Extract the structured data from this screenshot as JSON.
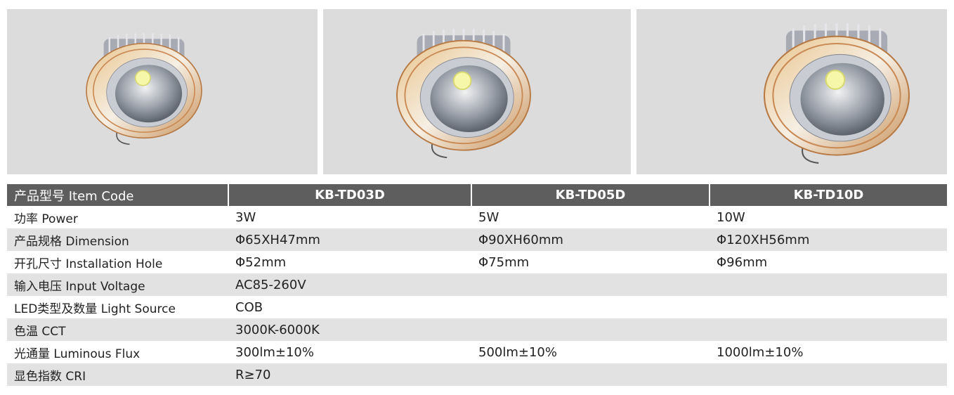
{
  "table": {
    "header": [
      "产品型号 Item Code",
      "KB-TD03D",
      "KB-TD05D",
      "KB-TD10D"
    ],
    "rows": [
      [
        "功率 Power",
        "3W",
        "5W",
        "10W"
      ],
      [
        "产品规格 Dimension",
        "Φ65XH47mm",
        "Φ90XH60mm",
        "Φ120XH56mm"
      ],
      [
        "开孔尺寸 Installation Hole",
        "Φ52mm",
        "Φ75mm",
        "Φ96mm"
      ],
      [
        "输入电压 Input Voltage",
        "AC85-260V"
      ],
      [
        "LED类型及数量 Light Source",
        "COB"
      ],
      [
        "色温 CCT",
        "3000K-6000K"
      ],
      [
        "光通量 Luminous Flux",
        "300lm±10%",
        "500lm±10%",
        "1000lm±10%"
      ],
      [
        "显色指数 CRI",
        "R≥70"
      ]
    ]
  }
}
